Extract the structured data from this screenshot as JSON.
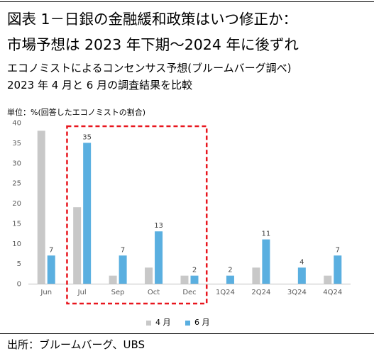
{
  "header": {
    "title_line1": "図表 1－日銀の金融緩和政策はいつ修正か：",
    "title_line2": "市場予想は 2023 年下期～2024 年に後ずれ",
    "subtitle_line1": "エコノミストによるコンセンサス予想(ブルームバーグ調べ)",
    "subtitle_line2": "2023 年 4 月と 6 月の調査結果を比較"
  },
  "footer": {
    "source": "出所：ブルームバーグ、UBS"
  },
  "colors": {
    "april": "#c8c8c8",
    "june": "#5aafe0",
    "highlight_box": "#e8161e",
    "axis": "#bfbfbf"
  },
  "chart_data": {
    "type": "bar",
    "unit_label": "単位：%(回答したエコノミストの割合)",
    "categories": [
      "Jun",
      "Jul",
      "Sep",
      "Oct",
      "Dec",
      "1Q24",
      "2Q24",
      "3Q24",
      "4Q24"
    ],
    "series": [
      {
        "name": "4 月",
        "values": [
          38,
          19,
          2,
          4,
          2,
          0,
          4,
          0,
          2
        ]
      },
      {
        "name": "6 月",
        "values": [
          7,
          35,
          7,
          13,
          2,
          2,
          11,
          4,
          7
        ]
      }
    ],
    "data_labels_series": "6 月",
    "ylim": [
      0,
      40
    ],
    "yticks": [
      0,
      5,
      10,
      15,
      20,
      25,
      30,
      35,
      40
    ],
    "grid": false,
    "legend_position": "bottom",
    "highlight": {
      "from": "Jul",
      "to": "Dec",
      "style": "red dashed box"
    }
  }
}
